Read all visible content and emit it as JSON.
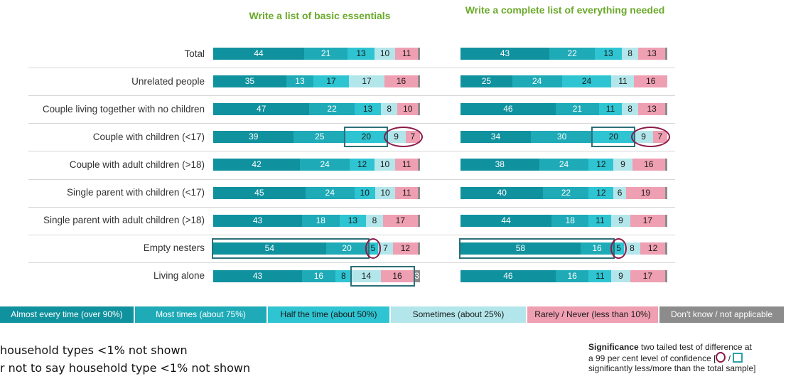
{
  "chart_data": {
    "type": "bar",
    "stacked": true,
    "orientation": "horizontal",
    "categories": [
      "Total",
      "Unrelated people",
      "Couple living together with no children",
      "Couple with children (<17)",
      "Couple with adult children (>18)",
      "Single parent with children (<17)",
      "Single parent with adult children (>18)",
      "Empty nesters",
      "Living alone"
    ],
    "series_labels": [
      "Almost every time (over 90%)",
      "Most times (about 75%)",
      "Half the time (about 50%)",
      "Sometimes (about 25%)",
      "Rarely / Never (less than 10%)",
      "Don't know / not applicable"
    ],
    "colors": [
      "#10919e",
      "#1eaab7",
      "#2ec4d2",
      "#b3e6ea",
      "#ef9fb2",
      "#8c8c8c"
    ],
    "text_colors": [
      "#ffffff",
      "#ffffff",
      "#1a1a1a",
      "#1a1a1a",
      "#1a1a1a",
      "#ffffff"
    ],
    "panels": [
      {
        "title": "Write a list of basic essentials",
        "values": [
          [
            44,
            21,
            13,
            10,
            11,
            1
          ],
          [
            35,
            13,
            17,
            17,
            16,
            1
          ],
          [
            47,
            22,
            13,
            8,
            10,
            1
          ],
          [
            39,
            25,
            20,
            9,
            7,
            0
          ],
          [
            42,
            24,
            12,
            10,
            11,
            1
          ],
          [
            45,
            24,
            10,
            10,
            11,
            1
          ],
          [
            43,
            18,
            13,
            8,
            17,
            1
          ],
          [
            54,
            20,
            5,
            7,
            12,
            1
          ],
          [
            43,
            16,
            8,
            14,
            16,
            3
          ]
        ],
        "labels": [
          [
            "44",
            "21",
            "13",
            "10",
            "11",
            ""
          ],
          [
            "35",
            "13",
            "17",
            "17",
            "16",
            ""
          ],
          [
            "47",
            "22",
            "13",
            "8",
            "10",
            ""
          ],
          [
            "39",
            "25",
            "20",
            "9",
            "7",
            ""
          ],
          [
            "42",
            "24",
            "12",
            "10",
            "11",
            ""
          ],
          [
            "45",
            "24",
            "10",
            "10",
            "11",
            ""
          ],
          [
            "43",
            "18",
            "13",
            "8",
            "17",
            ""
          ],
          [
            "54",
            "20",
            "5",
            "7",
            "12",
            ""
          ],
          [
            "43",
            "16",
            "8",
            "14",
            "16",
            "3"
          ]
        ],
        "sig_boxes": [
          {
            "row": 3,
            "from": 2,
            "to": 2
          },
          {
            "row": 7,
            "from": 0,
            "to": 1
          },
          {
            "row": 8,
            "from": 3,
            "to": 4
          }
        ],
        "sig_circles": [
          {
            "row": 3,
            "from": 3,
            "to": 4
          },
          {
            "row": 7,
            "from": 2,
            "to": 2
          }
        ]
      },
      {
        "title": "Write a complete list of everything needed",
        "values": [
          [
            43,
            22,
            13,
            8,
            13,
            1
          ],
          [
            25,
            24,
            24,
            11,
            16,
            0
          ],
          [
            46,
            21,
            11,
            8,
            13,
            1
          ],
          [
            34,
            30,
            20,
            9,
            7,
            0
          ],
          [
            38,
            24,
            12,
            9,
            16,
            1
          ],
          [
            40,
            22,
            12,
            6,
            19,
            1
          ],
          [
            44,
            18,
            11,
            9,
            17,
            1
          ],
          [
            58,
            16,
            5,
            8,
            12,
            1
          ],
          [
            46,
            16,
            11,
            9,
            17,
            1
          ]
        ],
        "labels": [
          [
            "43",
            "22",
            "13",
            "8",
            "13",
            ""
          ],
          [
            "25",
            "24",
            "24",
            "11",
            "16",
            ""
          ],
          [
            "46",
            "21",
            "11",
            "8",
            "13",
            ""
          ],
          [
            "34",
            "30",
            "20",
            "9",
            "7",
            ""
          ],
          [
            "38",
            "24",
            "12",
            "9",
            "16",
            ""
          ],
          [
            "40",
            "22",
            "12",
            "6",
            "19",
            ""
          ],
          [
            "44",
            "18",
            "11",
            "9",
            "17",
            ""
          ],
          [
            "58",
            "16",
            "5",
            "8",
            "12",
            ""
          ],
          [
            "46",
            "16",
            "11",
            "9",
            "17",
            ""
          ]
        ],
        "sig_boxes": [
          {
            "row": 3,
            "from": 2,
            "to": 2
          },
          {
            "row": 7,
            "from": 0,
            "to": 1
          }
        ],
        "sig_circles": [
          {
            "row": 3,
            "from": 3,
            "to": 4
          },
          {
            "row": 7,
            "from": 2,
            "to": 2
          }
        ]
      }
    ]
  },
  "notes": {
    "line1": "household types <1% not shown",
    "line2": "r not to say household type <1% not shown"
  },
  "significance": {
    "heading": "Significance",
    "line1_rest": "two tailed test of difference at",
    "line2": "a 99 per cent level of confidence [",
    "line3": "significantly less/more than the total sample]"
  }
}
